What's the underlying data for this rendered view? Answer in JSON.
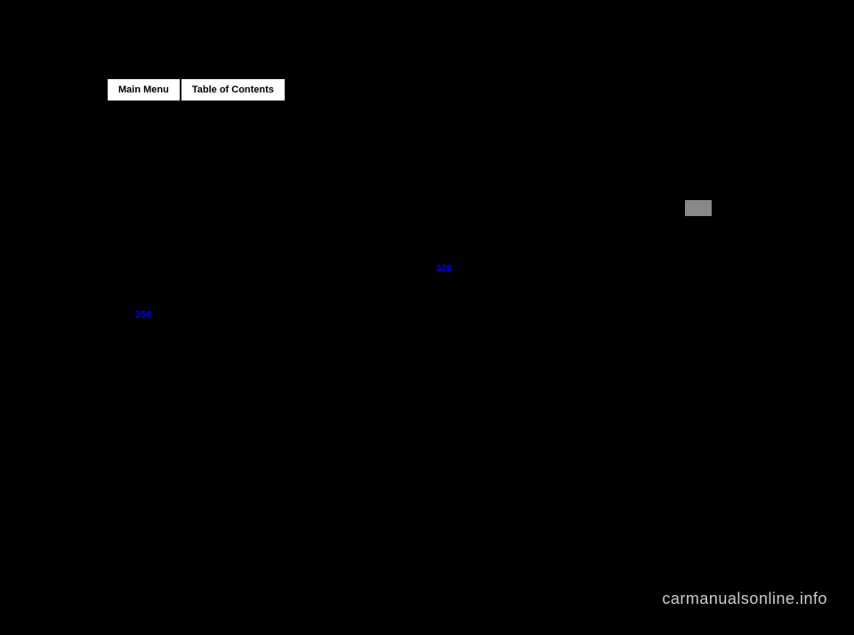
{
  "nav": {
    "main_menu": "Main Menu",
    "toc": "Table of Contents"
  },
  "links": {
    "link1": "358",
    "link2": "326"
  },
  "watermark": "carmanualsonline.info",
  "colors": {
    "background": "#000000",
    "button_bg": "#ffffff",
    "link_color": "#0000ff",
    "indicator_bg": "#888888",
    "watermark_color": "#cccccc"
  }
}
